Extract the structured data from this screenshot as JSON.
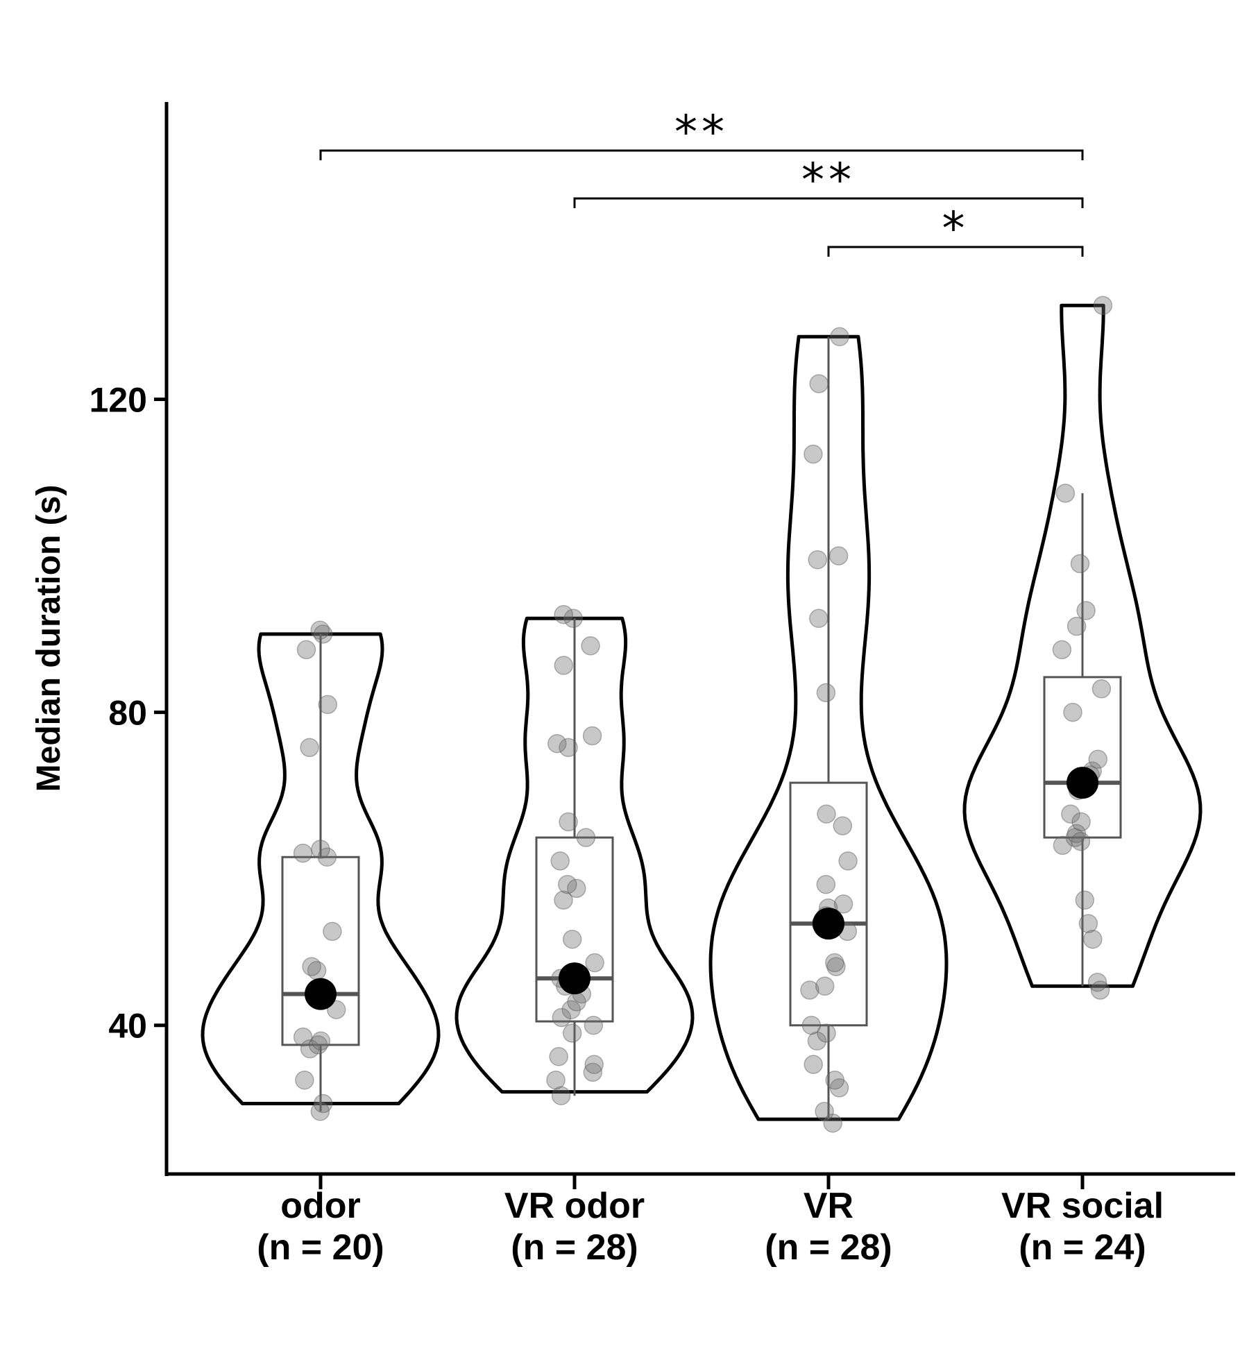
{
  "chart_data": {
    "type": "violin",
    "ylabel": "Median duration (s)",
    "xlabel": "",
    "ylim": [
      21,
      158
    ],
    "yticks": [
      40,
      80,
      120
    ],
    "grid": false,
    "categories": [
      {
        "label": "odor",
        "n_label": "(n = 20)",
        "median_dot": 44,
        "box": {
          "q1": 37.5,
          "median": 44,
          "q3": 61.5,
          "whisker_low": 29,
          "whisker_high": 90
        },
        "violin_range": [
          30,
          90
        ],
        "points": [
          29,
          30,
          33,
          37,
          37.5,
          38,
          38.5,
          42,
          44,
          47,
          47.5,
          52,
          61.5,
          62,
          62.5,
          75.5,
          81,
          88,
          90,
          90.5
        ]
      },
      {
        "label": "VR odor",
        "n_label": "(n = 28)",
        "median_dot": 46,
        "box": {
          "q1": 40.5,
          "median": 46,
          "q3": 64,
          "whisker_low": 31,
          "whisker_high": 92
        },
        "violin_range": [
          31.5,
          92
        ],
        "points": [
          31,
          33,
          34,
          35,
          36,
          39,
          40,
          41,
          42,
          43,
          44,
          45,
          46,
          48,
          51,
          56,
          57.5,
          58,
          61,
          64,
          66,
          75.5,
          76,
          77,
          86,
          88.5,
          92,
          92.5
        ]
      },
      {
        "label": "VR",
        "n_label": "(n = 28)",
        "median_dot": 53,
        "box": {
          "q1": 40,
          "median": 53,
          "q3": 71,
          "whisker_low": 28,
          "whisker_high": 128
        },
        "violin_range": [
          28,
          128
        ],
        "points": [
          27.5,
          29,
          32,
          33,
          35,
          38,
          39,
          40,
          44.5,
          45,
          47.5,
          48,
          52,
          53,
          54,
          55,
          58,
          65.5,
          67,
          82.5,
          92,
          99.5,
          100,
          113,
          122,
          128,
          55.5,
          61
        ]
      },
      {
        "label": "VR social",
        "n_label": "(n = 24)",
        "median_dot": 71,
        "box": {
          "q1": 64,
          "median": 71,
          "q3": 84.5,
          "whisker_low": 45,
          "whisker_high": 108
        },
        "violin_range": [
          45,
          132
        ],
        "points": [
          44.5,
          45.5,
          51,
          53,
          56,
          63,
          64,
          64.5,
          67,
          70,
          72,
          72.5,
          80,
          83,
          88,
          91,
          93,
          99,
          108,
          132,
          63.5,
          74,
          70.5,
          66
        ]
      }
    ],
    "annotations": [
      {
        "from": 0,
        "to": 3,
        "label": "**"
      },
      {
        "from": 1,
        "to": 3,
        "label": "**"
      },
      {
        "from": 2,
        "to": 3,
        "label": "*"
      }
    ]
  }
}
